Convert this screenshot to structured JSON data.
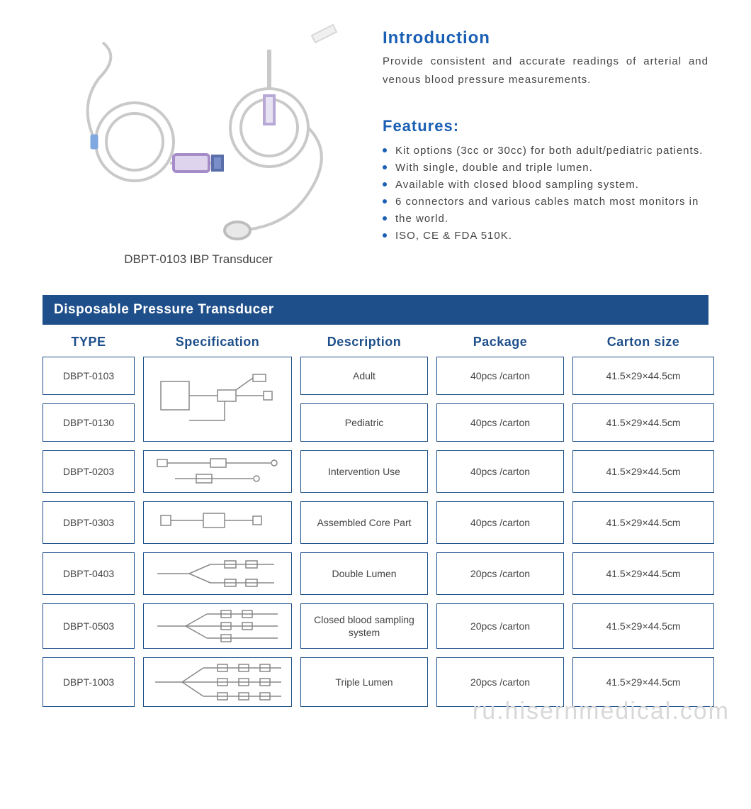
{
  "colors": {
    "heading_blue": "#1a5fb4",
    "table_header_bg": "#1e4f8a",
    "cell_border": "#1e4f8a",
    "bullet": "#1a5fb4",
    "body_text": "#444444",
    "watermark": "#d8d8d8",
    "diagram_stroke": "#888888"
  },
  "product": {
    "caption": "DBPT-0103 IBP Transducer"
  },
  "intro": {
    "title": "Introduction",
    "text": "Provide consistent and accurate readings of arterial and venous blood pressure measurements."
  },
  "features": {
    "title": "Features:",
    "items": [
      "Kit options (3cc or 30cc) for both adult/pediatric patients.",
      "With single, double and triple lumen.",
      "Available with closed blood sampling system.",
      "6 connectors and various cables match most monitors in",
      "the world.",
      "ISO, CE & FDA 510K."
    ]
  },
  "table": {
    "title": "Disposable Pressure Transducer",
    "columns": [
      "TYPE",
      "Specification",
      "Description",
      "Package",
      "Carton  size"
    ],
    "rows": [
      {
        "type": "DBPT-0103",
        "spec_variant": "single",
        "spec_rowspan": 2,
        "description": "Adult",
        "package": "40pcs /carton",
        "carton": "41.5×29×44.5cm"
      },
      {
        "type": "DBPT-0130",
        "spec_variant": null,
        "spec_rowspan": 0,
        "description": "Pediatric",
        "package": "40pcs /carton",
        "carton": "41.5×29×44.5cm"
      },
      {
        "type": "DBPT-0203",
        "spec_variant": "intervention",
        "spec_rowspan": 1,
        "description": "Intervention Use",
        "package": "40pcs /carton",
        "carton": "41.5×29×44.5cm"
      },
      {
        "type": "DBPT-0303",
        "spec_variant": "core",
        "spec_rowspan": 1,
        "description": "Assembled Core Part",
        "package": "40pcs /carton",
        "carton": "41.5×29×44.5cm"
      },
      {
        "type": "DBPT-0403",
        "spec_variant": "double",
        "spec_rowspan": 1,
        "description": "Double Lumen",
        "package": "20pcs /carton",
        "carton": "41.5×29×44.5cm"
      },
      {
        "type": "DBPT-0503",
        "spec_variant": "closed",
        "spec_rowspan": 1,
        "description": "Closed blood sampling system",
        "package": "20pcs /carton",
        "carton": "41.5×29×44.5cm"
      },
      {
        "type": "DBPT-1003",
        "spec_variant": "triple",
        "spec_rowspan": 1,
        "description": "Triple Lumen",
        "package": "20pcs /carton",
        "carton": "41.5×29×44.5cm"
      }
    ]
  },
  "watermark": "ru.hisernmedical.com"
}
